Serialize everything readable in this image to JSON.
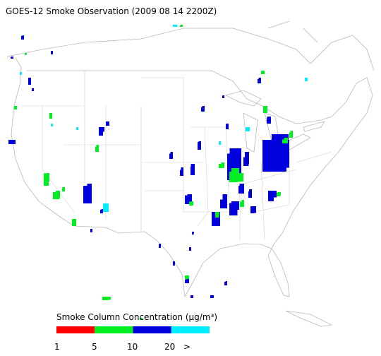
{
  "title": "GOES-12 Smoke Observation (2009 08 14  2200Z)",
  "legend": {
    "title": "Smoke Column Concentration (μg/m³)",
    "ticks": [
      "1",
      "5",
      "10",
      "20",
      ">"
    ],
    "colors": [
      "#ff0000",
      "#00ee22",
      "#0000dd",
      "#00eeff"
    ]
  }
}
